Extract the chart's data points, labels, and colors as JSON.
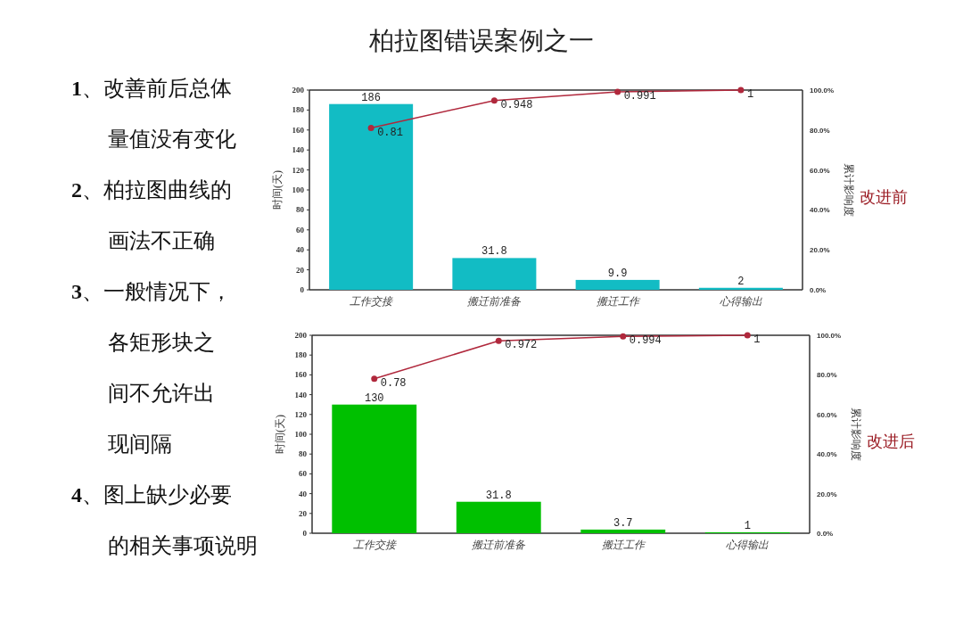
{
  "chart_data": [
    {
      "type": "bar",
      "title": "柏拉图错误案例之一",
      "ylabel": "时间(天)",
      "y2label": "累计影响度",
      "annotations": [
        "1、改善前后总体",
        "量值没有变化",
        "2、柏拉图曲线的",
        "画法不正确",
        "3、一般情况下，",
        "各矩形块之",
        "间不允许出",
        "现间隔",
        "4、图上缺少必要",
        "的相关事项说明",
        "改进前"
      ],
      "categories": [
        "工作交接",
        "搬迁前准备",
        "搬迁工作",
        "心得输出"
      ],
      "series": [
        {
          "type": "bar",
          "color": "#12bcc4",
          "values": [
            186,
            31.8,
            9.9,
            2
          ]
        },
        {
          "type": "line",
          "axis": "y2",
          "color": "#b0283c",
          "values": [
            0.81,
            0.948,
            0.991,
            1
          ]
        }
      ],
      "ylim": [
        0,
        200
      ],
      "yticks": [
        0,
        20,
        40,
        60,
        80,
        100,
        120,
        140,
        160,
        180,
        200
      ],
      "y2lim": [
        0,
        1
      ],
      "y2ticks": [
        {
          "value": 0,
          "label": "0.0%"
        },
        {
          "value": 0.2,
          "label": "20.0%"
        },
        {
          "value": 0.4,
          "label": "40.0%"
        },
        {
          "value": 0.6,
          "label": "60.0%"
        },
        {
          "value": 0.8,
          "label": "80.0%"
        },
        {
          "value": 1,
          "label": "100.0%"
        }
      ],
      "data_labels": true,
      "marker": "circle",
      "grid": false
    },
    {
      "type": "bar",
      "ylabel": "时间(天)",
      "y2label": "累计影响度",
      "annotations": [
        "改进后"
      ],
      "categories": [
        "工作交接",
        "搬迁前准备",
        "搬迁工作",
        "心得输出"
      ],
      "series": [
        {
          "type": "bar",
          "color": "#00c000",
          "values": [
            130,
            31.8,
            3.7,
            1
          ]
        },
        {
          "type": "line",
          "axis": "y2",
          "color": "#b0283c",
          "values": [
            0.78,
            0.972,
            0.994,
            1
          ]
        }
      ],
      "ylim": [
        0,
        200
      ],
      "yticks": [
        0,
        20,
        40,
        60,
        80,
        100,
        120,
        140,
        160,
        180,
        200
      ],
      "y2lim": [
        0,
        1
      ],
      "y2ticks": [
        {
          "value": 0,
          "label": "0.0%"
        },
        {
          "value": 0.2,
          "label": "20.0%"
        },
        {
          "value": 0.4,
          "label": "40.0%"
        },
        {
          "value": 0.6,
          "label": "60.0%"
        },
        {
          "value": 0.8,
          "label": "80.0%"
        },
        {
          "value": 1,
          "label": "100.0%"
        }
      ],
      "data_labels": true,
      "marker": "circle",
      "grid": false
    }
  ]
}
